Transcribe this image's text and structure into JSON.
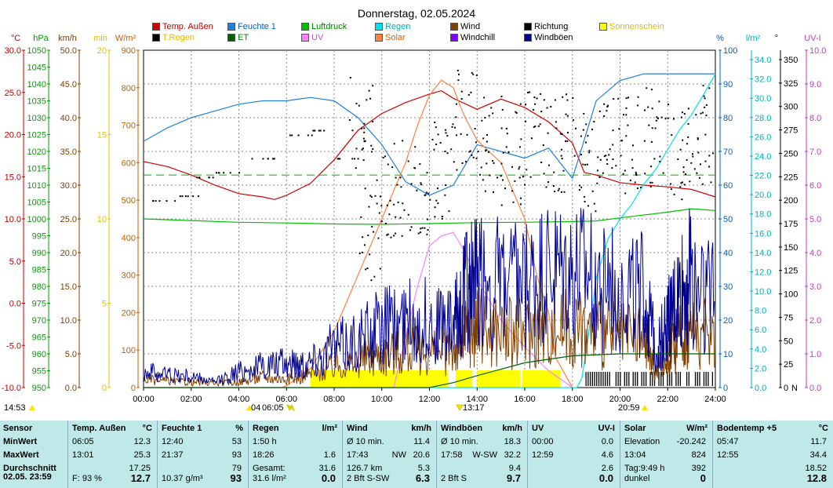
{
  "chart_data": {
    "type": "line",
    "title": "Donnerstag, 02.05.2024",
    "x_ticks": [
      "00:00",
      "02:00",
      "04:00",
      "06:00",
      "08:00",
      "10:00",
      "12:00",
      "14:00",
      "16:00",
      "18:00",
      "20:00",
      "22:00",
      "24:00"
    ],
    "xlim": [
      0,
      24
    ],
    "markers": {
      "left_time": "14:53",
      "sunrise_label": "06:05",
      "sunrise_prefix": "04",
      "noon_label": "13:17",
      "sunset_label": "20:59"
    },
    "axes_left": [
      {
        "unit": "°C",
        "color": "#c00000",
        "ticks": [
          "30.0",
          "25.0",
          "20.0",
          "15.0",
          "10.0",
          "5.0",
          "0.0",
          "-5.0",
          "-10.0"
        ],
        "ylim": [
          -10,
          30
        ]
      },
      {
        "unit": "hPa",
        "color": "#00a000",
        "ticks": [
          "1050",
          "1045",
          "1040",
          "1035",
          "1030",
          "1025",
          "1020",
          "1015",
          "1010",
          "1005",
          "1000",
          "995",
          "990",
          "985",
          "980",
          "975",
          "970",
          "965",
          "960",
          "955",
          "950"
        ],
        "ylim": [
          950,
          1050
        ]
      },
      {
        "unit": "km/h",
        "color": "#804000",
        "ticks": [
          "50.0",
          "45.0",
          "40.0",
          "35.0",
          "30.0",
          "25.0",
          "20.0",
          "15.0",
          "10.0",
          "5.0",
          "0.0"
        ],
        "ylim": [
          0,
          50
        ]
      },
      {
        "unit": "min",
        "color": "#e0c000",
        "ticks": [
          "20",
          "15",
          "10",
          "5",
          "0"
        ],
        "ylim": [
          0,
          20
        ]
      },
      {
        "unit": "W/m²",
        "color": "#c06000",
        "ticks": [
          "900",
          "800",
          "700",
          "600",
          "500",
          "400",
          "300",
          "200",
          "100",
          "0"
        ],
        "ylim": [
          0,
          900
        ]
      }
    ],
    "axes_right": [
      {
        "unit": "%",
        "color": "#0060c0",
        "ticks": [
          "100",
          "90",
          "80",
          "70",
          "60",
          "50",
          "40",
          "30",
          "20",
          "10",
          "0"
        ],
        "ylim": [
          0,
          100
        ]
      },
      {
        "unit": "l/m²",
        "color": "#00b0c0",
        "ticks": [
          "34.0",
          "32.0",
          "30.0",
          "28.0",
          "26.0",
          "24.0",
          "22.0",
          "20.0",
          "18.0",
          "16.0",
          "14.0",
          "12.0",
          "10.0",
          "8.0",
          "6.0",
          "4.0",
          "2.0",
          "0.0"
        ],
        "ylim": [
          0,
          34
        ]
      },
      {
        "unit": "°",
        "color": "#000000",
        "ticks": [
          "350",
          "325",
          "300",
          "275",
          "250",
          "225",
          "200",
          "175",
          "150",
          "125",
          "100",
          "75",
          "50",
          "25",
          "0"
        ],
        "ylim": [
          0,
          360
        ],
        "n_label": "N"
      },
      {
        "unit": "UV-I",
        "color": "#c040c0",
        "ticks": [
          "10.0",
          "9.0",
          "8.0",
          "7.0",
          "6.0",
          "5.0",
          "4.0",
          "3.0",
          "2.0",
          "1.0",
          "0.0"
        ],
        "ylim": [
          0,
          10
        ]
      }
    ],
    "legend": [
      {
        "label": "Temp. Außen",
        "color": "#d00000"
      },
      {
        "label": "Feuchte 1",
        "color": "#2080e0"
      },
      {
        "label": "Luftdruck",
        "color": "#00c000"
      },
      {
        "label": "Regen",
        "color": "#00e0f0"
      },
      {
        "label": "Wind",
        "color": "#804000"
      },
      {
        "label": "Richtung",
        "color": "#000000"
      },
      {
        "label": "Sonnenschein",
        "color": "#ffff00"
      },
      {
        "label": "T.Regen",
        "color": "#000000"
      },
      {
        "label": "ET",
        "color": "#006000"
      },
      {
        "label": "UV",
        "color": "#ff80ff"
      },
      {
        "label": "Solar",
        "color": "#ff8040"
      },
      {
        "label": "Windchill",
        "color": "#8000ff"
      },
      {
        "label": "Windböen",
        "color": "#000090"
      }
    ],
    "series": [
      {
        "name": "Temp. Außen",
        "axis": "°C",
        "x": [
          0,
          1,
          2,
          3,
          4,
          5,
          5.5,
          6,
          7,
          8,
          9,
          10,
          11,
          12,
          12.5,
          13,
          14,
          15,
          16,
          17,
          18,
          18.5,
          19,
          20,
          21,
          22,
          23,
          24
        ],
        "values": [
          16.8,
          16.2,
          15.2,
          14.0,
          13.0,
          12.6,
          12.3,
          12.8,
          14.2,
          17.0,
          20.5,
          22.5,
          23.8,
          24.8,
          25.2,
          24.3,
          23.0,
          24.2,
          23.2,
          21.5,
          19.0,
          15.5,
          15.2,
          14.3,
          14.0,
          13.8,
          13.5,
          12.6
        ]
      },
      {
        "name": "Feuchte 1",
        "axis": "%",
        "x": [
          0,
          1,
          2,
          3,
          4,
          5,
          6,
          7,
          8,
          9,
          10,
          11,
          12,
          13,
          14,
          15,
          16,
          17,
          18,
          19,
          20,
          21,
          22,
          23,
          24
        ],
        "values": [
          73,
          77,
          80,
          82,
          84,
          85,
          85,
          86,
          85,
          80,
          72,
          61,
          57,
          60,
          72,
          70,
          68,
          71,
          62,
          85,
          91,
          93,
          93,
          93,
          93
        ]
      },
      {
        "name": "Luftdruck",
        "axis": "hPa",
        "x": [
          0,
          2,
          4,
          6,
          8,
          10,
          12,
          14,
          16,
          18,
          19,
          20,
          22,
          23,
          24
        ],
        "values": [
          1000,
          999.5,
          999,
          998.8,
          998.5,
          998.4,
          998.6,
          998.9,
          999.0,
          999.2,
          999.4,
          1000.3,
          1002,
          1003,
          1002.5
        ]
      },
      {
        "name": "Regen",
        "axis": "l/m²",
        "x": [
          0,
          18.2,
          18.4,
          18.6,
          19,
          19.5,
          20,
          20.5,
          21,
          21.5,
          22,
          22.5,
          23,
          23.5,
          24
        ],
        "values": [
          0,
          0,
          1.0,
          4.0,
          11,
          15,
          17,
          18.5,
          20.5,
          22,
          24,
          26,
          27.5,
          29.5,
          31.6
        ]
      },
      {
        "name": "Solar",
        "axis": "W/m²",
        "x": [
          0,
          5.8,
          6,
          7,
          8,
          9,
          10,
          11,
          11.5,
          12,
          12.5,
          13,
          13.3,
          13.5,
          14,
          15,
          16,
          16.5,
          17,
          17.3,
          18
        ],
        "values": [
          0,
          0,
          5,
          50,
          150,
          300,
          450,
          600,
          700,
          780,
          820,
          800,
          750,
          720,
          660,
          600,
          450,
          300,
          200,
          80,
          0
        ]
      },
      {
        "name": "UV",
        "axis": "UV-I",
        "x": [
          0,
          10.5,
          11,
          11.5,
          12,
          12.5,
          13,
          13.5,
          14,
          15,
          16,
          17,
          18
        ],
        "values": [
          0,
          0,
          1.5,
          3.0,
          4.2,
          4.5,
          4.6,
          4.0,
          3.2,
          2.0,
          1.2,
          0.5,
          0
        ]
      },
      {
        "name": "Wind",
        "axis": "km/h",
        "x": [
          0,
          1,
          2,
          3,
          4,
          5,
          6,
          7,
          8,
          9,
          10,
          11,
          12,
          13,
          13.5,
          14,
          15,
          16,
          17,
          18,
          19,
          20,
          21,
          21.5,
          22,
          22.5,
          23,
          24
        ],
        "values": [
          1.5,
          1.2,
          1.0,
          0.8,
          1.0,
          2.0,
          1.5,
          2.5,
          4.0,
          5.0,
          6.0,
          7.0,
          6.5,
          7.0,
          10.0,
          11.0,
          10.5,
          10.0,
          11.5,
          11.0,
          10.5,
          9.5,
          9.0,
          3.0,
          6.0,
          9.0,
          11.0,
          9.5
        ]
      },
      {
        "name": "Windböen",
        "axis": "km/h",
        "x": [
          0,
          1,
          2,
          3,
          4,
          5,
          6,
          7,
          8,
          9,
          10,
          11,
          12,
          13,
          13.5,
          14,
          15,
          16,
          17,
          18,
          19,
          20,
          21,
          21.5,
          22,
          22.5,
          23,
          24
        ],
        "values": [
          3.0,
          2.5,
          2.0,
          1.0,
          3.0,
          4.0,
          4.5,
          5.0,
          7.5,
          9.0,
          11.0,
          12.0,
          12.5,
          11.0,
          18.5,
          20.0,
          19.0,
          18.0,
          20.5,
          20.0,
          19.5,
          18.5,
          17.0,
          7.0,
          12.0,
          17.0,
          21.0,
          18.0
        ]
      },
      {
        "name": "ET",
        "axis": "l/m²",
        "x": [
          0,
          12,
          13,
          14,
          16,
          18,
          20,
          24
        ],
        "values": [
          0,
          0,
          0.5,
          1.2,
          2.5,
          3.2,
          3.4,
          3.4
        ]
      }
    ],
    "grid": true
  },
  "stats": {
    "cols": [
      {
        "title": "Sensor",
        "unit": "",
        "rows": [
          "MinWert",
          "MaxWert",
          "Durchschnitt"
        ],
        "final": "02.05. 23:59"
      },
      {
        "title": "Temp. Außen",
        "unit": "°C",
        "r1a": "06:05",
        "r1b": "12.3",
        "r2a": "13:01",
        "r2b": "25.3",
        "r3b": "17.25",
        "f_a": "F: 93 %",
        "f_b": "12.7"
      },
      {
        "title": "Feuchte 1",
        "unit": "%",
        "r1a": "12:40",
        "r1b": "53",
        "r2a": "21:37",
        "r2b": "93",
        "r3b": "79",
        "f_a": "10.37 g/m³",
        "f_b": "93"
      },
      {
        "title": "Regen",
        "unit": "l/m²",
        "r1a": "1:50 h",
        "r1b": "",
        "r2a": "18:26",
        "r2b": "1.6",
        "r3a": "Gesamt:",
        "r3b": "31.6",
        "f_a": "31.6 l/m²",
        "f_b": "0.0"
      },
      {
        "title": "Wind",
        "unit": "km/h",
        "r1a": "Ø 10 min.",
        "r1b": "11.4",
        "r2a": "17:43",
        "r2mid": "NW",
        "r2b": "20.6",
        "r3a": "126.7 km",
        "r3b": "5.3",
        "f_a": "2 Bft S-SW",
        "f_b": "6.3"
      },
      {
        "title": "Windböen",
        "unit": "km/h",
        "r1a": "Ø 10 min.",
        "r1b": "18.3",
        "r2a": "17:58",
        "r2mid": "W-SW",
        "r2b": "32.2",
        "r3b": "9.4",
        "f_a": "2 Bft S",
        "f_b": "9.7"
      },
      {
        "title": "UV",
        "unit": "UV-I",
        "r1a": "00:00",
        "r1b": "0.0",
        "r2a": "12:59",
        "r2b": "4.6",
        "r3b": "2.6",
        "f_a": "",
        "f_b": "0.0"
      },
      {
        "title": "Solar",
        "unit": "W/m²",
        "r1a": "Elevation",
        "r1b": "-20.242",
        "r2a": "13:04",
        "r2b": "824",
        "r3a": "Tag:9:49 h",
        "r3b": "392",
        "f_a": "dunkel",
        "f_b": "0"
      },
      {
        "title": "Bodentemp +5",
        "unit": "°C",
        "r1a": "05:47",
        "r1b": "11.7",
        "r2a": "12:55",
        "r2b": "34.4",
        "r3b": "18.52",
        "f_a": "",
        "f_b": "12.8"
      }
    ]
  }
}
